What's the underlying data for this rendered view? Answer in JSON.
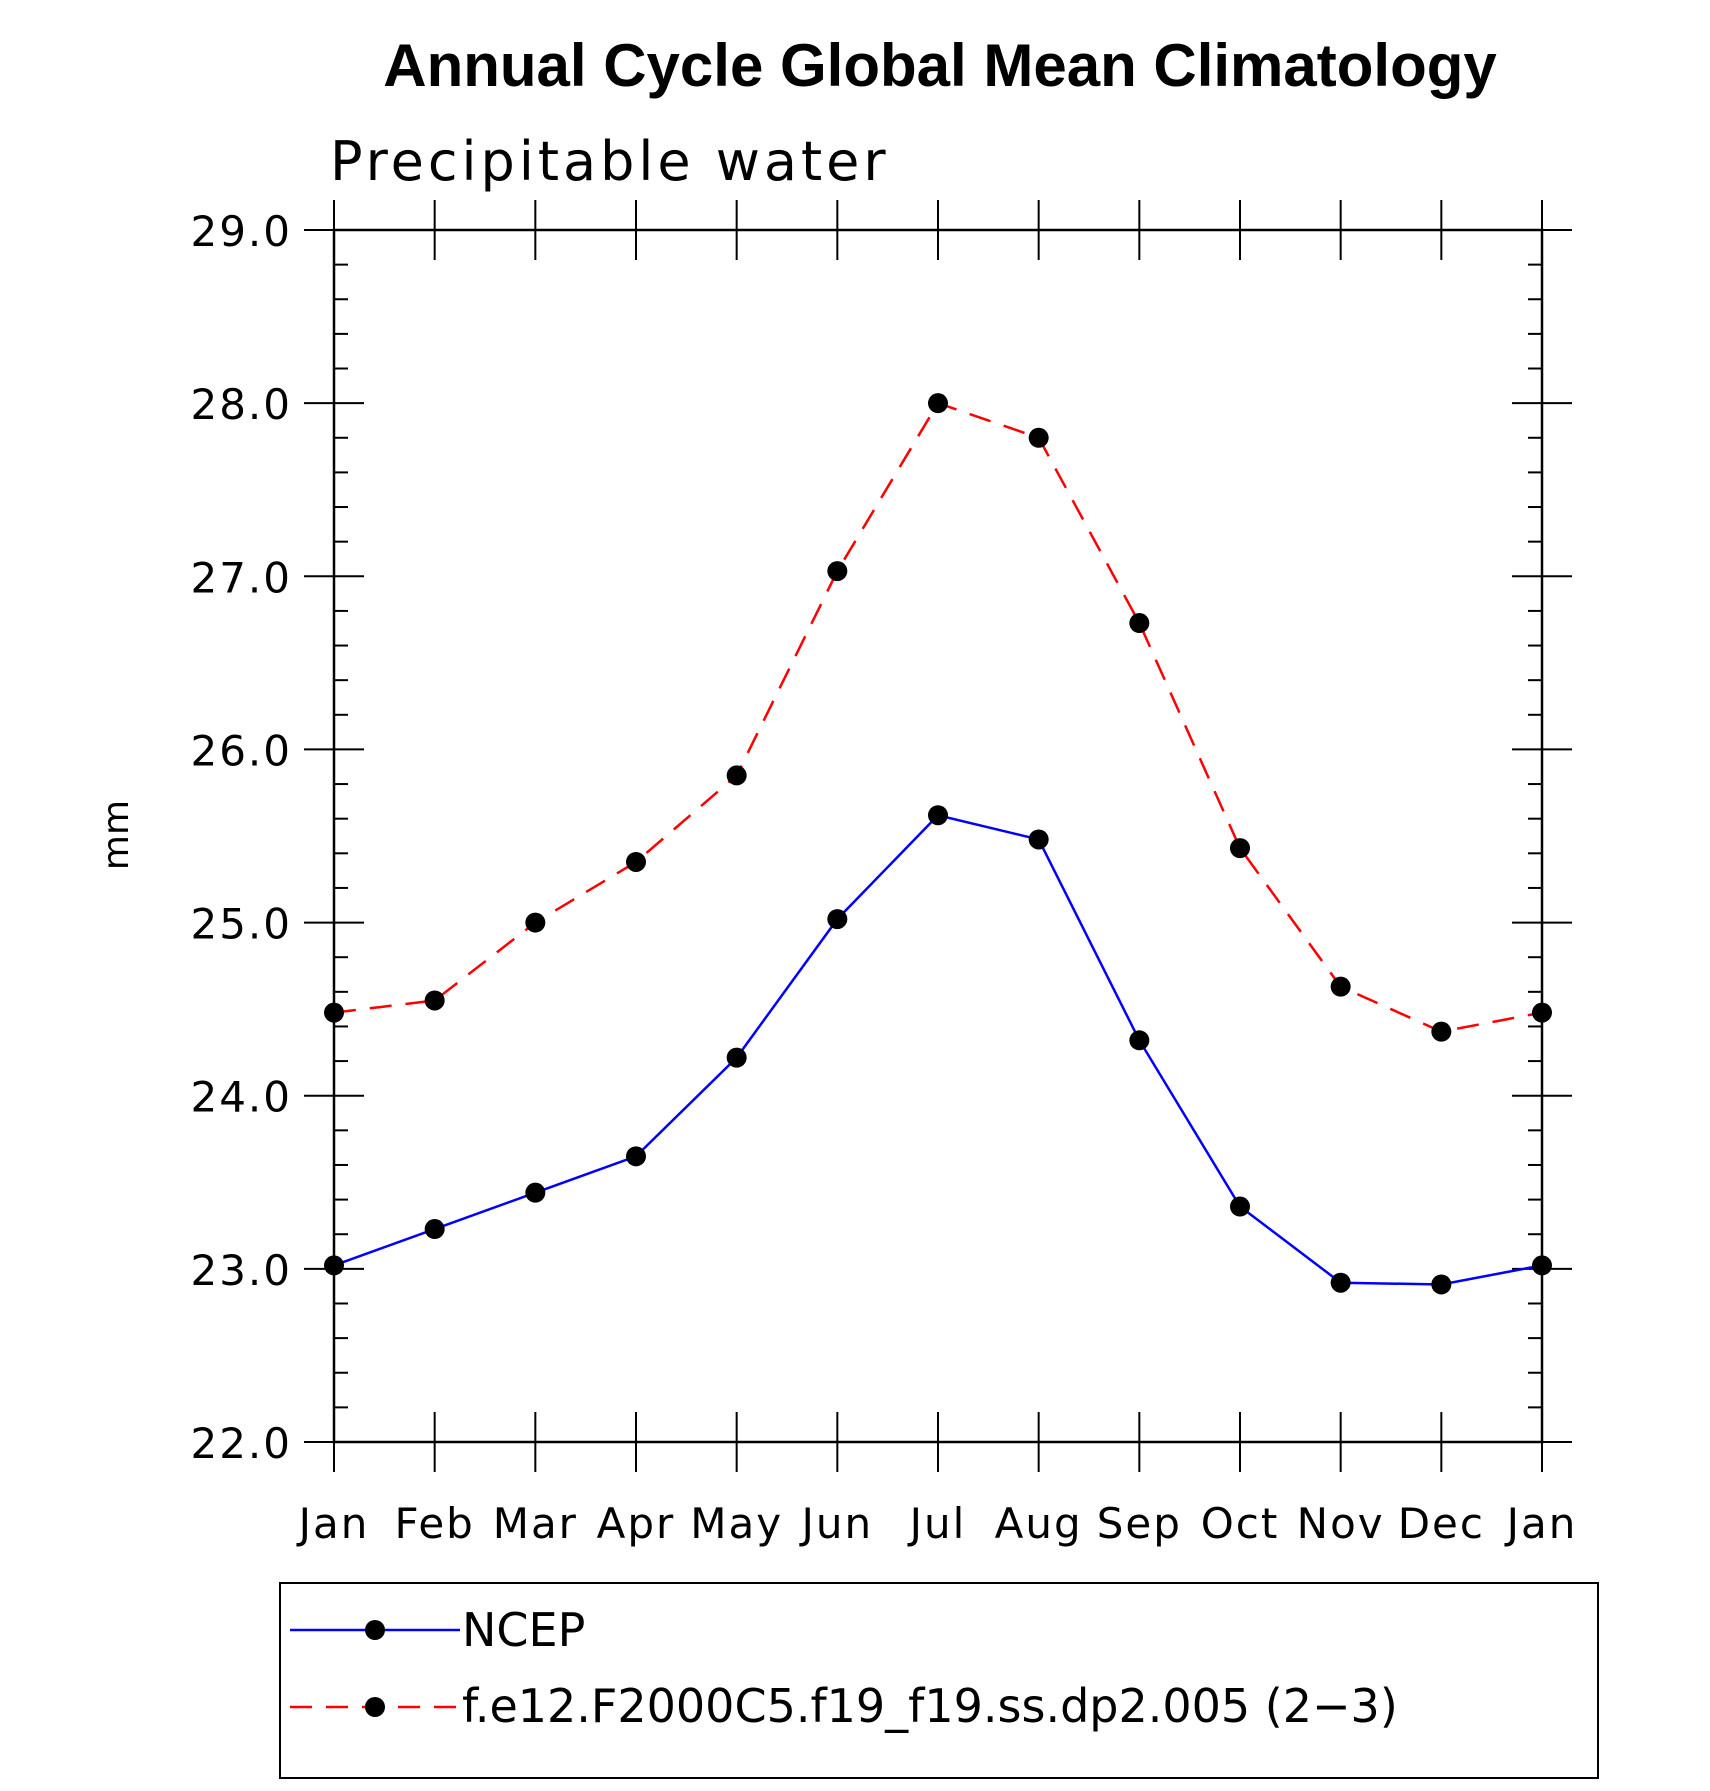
{
  "chart_data": {
    "type": "line",
    "title": "Annual Cycle Global Mean Climatology",
    "subtitle": "Precipitable water",
    "ylabel": "mm",
    "xlabel": "",
    "categories": [
      "Jan",
      "Feb",
      "Mar",
      "Apr",
      "May",
      "Jun",
      "Jul",
      "Aug",
      "Sep",
      "Oct",
      "Nov",
      "Dec",
      "Jan"
    ],
    "ylim": [
      22.0,
      29.0
    ],
    "yticks": [
      "22.0",
      "23.0",
      "24.0",
      "25.0",
      "26.0",
      "27.0",
      "28.0",
      "29.0"
    ],
    "grid": false,
    "legend_position": "bottom",
    "series": [
      {
        "name": "NCEP",
        "color": "#0000ff",
        "line_style": "solid",
        "marker": "filled-circle",
        "values": [
          23.02,
          23.23,
          23.44,
          23.65,
          24.22,
          25.02,
          25.62,
          25.48,
          24.32,
          23.36,
          22.92,
          22.91,
          23.02
        ]
      },
      {
        "name": "f.e12.F2000C5.f19_f19.ss.dp2.005 (2−3)",
        "color": "#ff0000",
        "line_style": "dashed",
        "marker": "filled-circle",
        "values": [
          24.48,
          24.55,
          25.0,
          25.35,
          25.85,
          27.03,
          28.0,
          27.8,
          26.73,
          25.43,
          24.63,
          24.37,
          24.48
        ]
      }
    ]
  }
}
